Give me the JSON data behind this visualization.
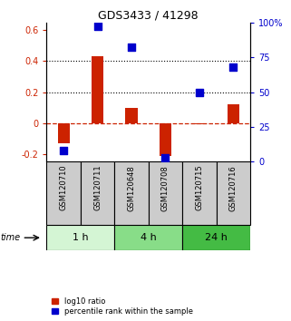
{
  "title": "GDS3433 / 41298",
  "samples": [
    "GSM120710",
    "GSM120711",
    "GSM120648",
    "GSM120708",
    "GSM120715",
    "GSM120716"
  ],
  "log10_ratio": [
    -0.13,
    0.43,
    0.1,
    -0.21,
    -0.01,
    0.12
  ],
  "percentile_rank_pct": [
    8,
    97,
    82,
    3,
    50,
    68
  ],
  "groups": [
    {
      "label": "1 h",
      "indices": [
        0,
        1
      ],
      "color": "#d4f5d4"
    },
    {
      "label": "4 h",
      "indices": [
        2,
        3
      ],
      "color": "#88dd88"
    },
    {
      "label": "24 h",
      "indices": [
        4,
        5
      ],
      "color": "#44bb44"
    }
  ],
  "bar_color": "#cc2200",
  "dot_color": "#0000cc",
  "ylim_left": [
    -0.25,
    0.65
  ],
  "ylim_right": [
    0,
    100
  ],
  "yticks_left": [
    -0.2,
    0.0,
    0.2,
    0.4,
    0.6
  ],
  "ytick_labels_left": [
    "-0.2",
    "0",
    "0.2",
    "0.4",
    "0.6"
  ],
  "yticks_right": [
    0,
    25,
    50,
    75,
    100
  ],
  "ytick_labels_right": [
    "0",
    "25",
    "50",
    "75",
    "100%"
  ],
  "hlines": [
    0.2,
    0.4
  ],
  "zero_line_y": 0.0,
  "bar_width": 0.35,
  "dot_size": 30,
  "time_label": "time",
  "legend_bar_label": "log10 ratio",
  "legend_dot_label": "percentile rank within the sample",
  "sample_box_color": "#cccccc",
  "sample_box_edgecolor": "#000000"
}
